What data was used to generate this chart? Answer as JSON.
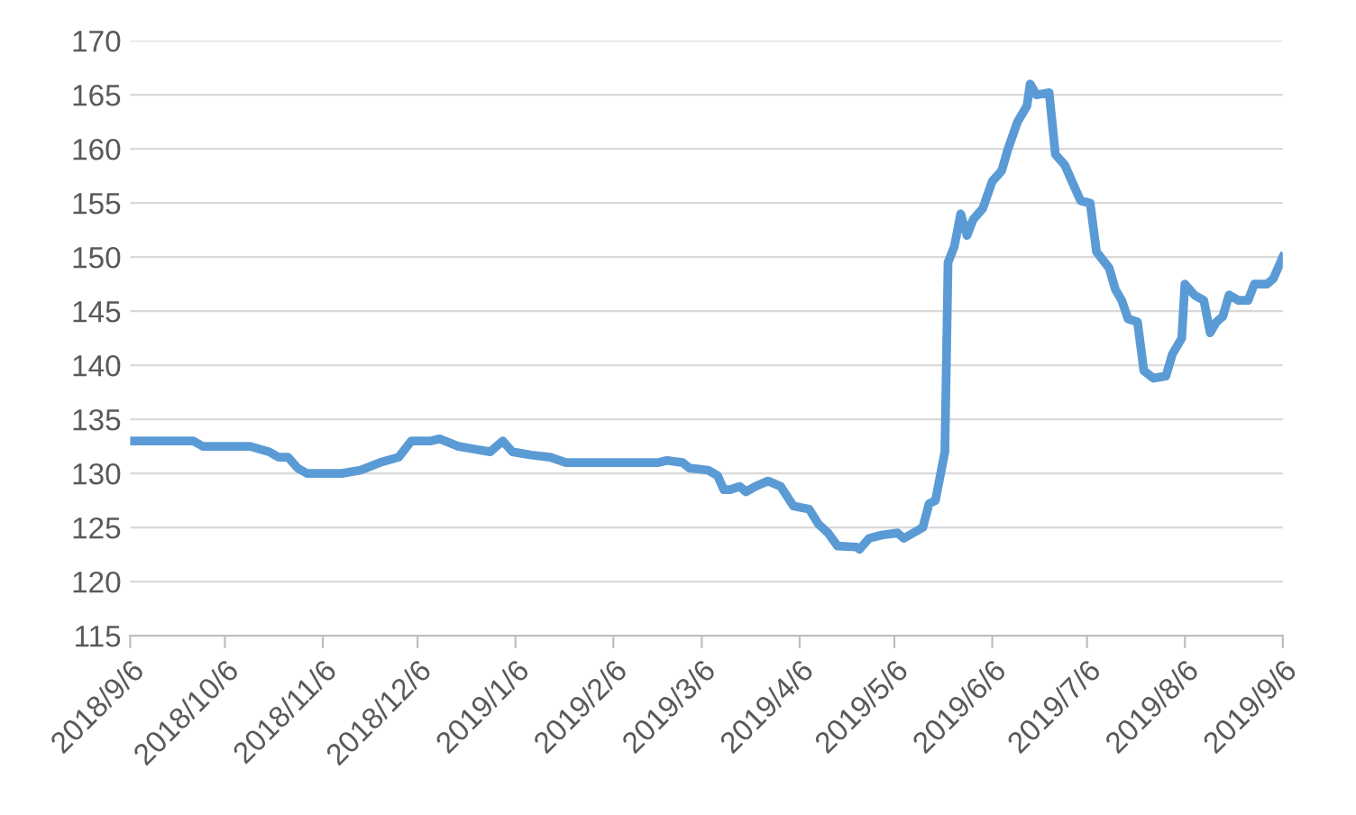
{
  "chart_data": {
    "type": "line",
    "grid": "y",
    "marker": "none",
    "line_style": "solid",
    "xlim": [
      "2018-09-06",
      "2019-09-06"
    ],
    "xticks": [
      {
        "value": "2018-09-06",
        "label": "2018/9/6"
      },
      {
        "value": "2018-10-06",
        "label": "2018/10/6"
      },
      {
        "value": "2018-11-06",
        "label": "2018/11/6"
      },
      {
        "value": "2018-12-06",
        "label": "2018/12/6"
      },
      {
        "value": "2019-01-06",
        "label": "2019/1/6"
      },
      {
        "value": "2019-02-06",
        "label": "2019/2/6"
      },
      {
        "value": "2019-03-06",
        "label": "2019/3/6"
      },
      {
        "value": "2019-04-06",
        "label": "2019/4/6"
      },
      {
        "value": "2019-05-06",
        "label": "2019/5/6"
      },
      {
        "value": "2019-06-06",
        "label": "2019/6/6"
      },
      {
        "value": "2019-07-06",
        "label": "2019/7/6"
      },
      {
        "value": "2019-08-06",
        "label": "2019/8/6"
      },
      {
        "value": "2019-09-06",
        "label": "2019/9/6"
      }
    ],
    "ylim": [
      115,
      170
    ],
    "yticks": [
      115,
      120,
      125,
      130,
      135,
      140,
      145,
      150,
      155,
      160,
      165,
      170
    ],
    "x": [
      "2018-09-06",
      "2018-09-26",
      "2018-09-29",
      "2018-10-14",
      "2018-10-20",
      "2018-10-23",
      "2018-10-26",
      "2018-10-29",
      "2018-11-01",
      "2018-11-05",
      "2018-11-12",
      "2018-11-18",
      "2018-11-24",
      "2018-11-30",
      "2018-12-04",
      "2018-12-10",
      "2018-12-13",
      "2018-12-19",
      "2018-12-25",
      "2018-12-29",
      "2019-01-02",
      "2019-01-05",
      "2019-01-11",
      "2019-01-17",
      "2019-01-22",
      "2019-01-31",
      "2019-02-20",
      "2019-02-23",
      "2019-02-28",
      "2019-03-02",
      "2019-03-08",
      "2019-03-11",
      "2019-03-13",
      "2019-03-15",
      "2019-03-18",
      "2019-03-20",
      "2019-03-23",
      "2019-03-27",
      "2019-03-31",
      "2019-04-04",
      "2019-04-09",
      "2019-04-12",
      "2019-04-15",
      "2019-04-18",
      "2019-04-24",
      "2019-04-25",
      "2019-04-28",
      "2019-05-02",
      "2019-05-07",
      "2019-05-09",
      "2019-05-12",
      "2019-05-15",
      "2019-05-17",
      "2019-05-19",
      "2019-05-22",
      "2019-05-23",
      "2019-05-25",
      "2019-05-27",
      "2019-05-29",
      "2019-05-31",
      "2019-06-03",
      "2019-06-06",
      "2019-06-09",
      "2019-06-11",
      "2019-06-14",
      "2019-06-17",
      "2019-06-18",
      "2019-06-20",
      "2019-06-24",
      "2019-06-26",
      "2019-06-29",
      "2019-07-02",
      "2019-07-04",
      "2019-07-07",
      "2019-07-09",
      "2019-07-13",
      "2019-07-15",
      "2019-07-17",
      "2019-07-19",
      "2019-07-22",
      "2019-07-24",
      "2019-07-27",
      "2019-07-31",
      "2019-08-02",
      "2019-08-05",
      "2019-08-06",
      "2019-08-09",
      "2019-08-12",
      "2019-08-14",
      "2019-08-16",
      "2019-08-18",
      "2019-08-20",
      "2019-08-23",
      "2019-08-26",
      "2019-08-28",
      "2019-09-01",
      "2019-09-03",
      "2019-09-06"
    ],
    "series": [
      {
        "color": "#5b9bd5",
        "values": [
          133,
          133,
          132.5,
          132.5,
          132,
          131.5,
          131.5,
          130.5,
          130,
          130,
          130,
          130.3,
          131,
          131.5,
          133,
          133,
          133.2,
          132.5,
          132.2,
          132,
          133,
          132,
          131.7,
          131.5,
          131,
          131,
          131,
          131.2,
          131,
          130.5,
          130.3,
          129.8,
          128.5,
          128.5,
          128.8,
          128.3,
          128.8,
          129.3,
          128.8,
          127,
          126.7,
          125.3,
          124.5,
          123.3,
          123.2,
          123,
          124,
          124.3,
          124.5,
          124,
          124.5,
          125,
          127.2,
          127.5,
          132,
          149.5,
          151,
          154,
          152,
          153.5,
          154.5,
          157,
          158,
          160,
          162.5,
          164,
          166,
          165,
          165.2,
          159.5,
          158.5,
          156.5,
          155.2,
          155,
          150.5,
          149,
          147,
          146,
          144.3,
          144,
          139.5,
          138.8,
          139,
          141,
          142.5,
          147.5,
          146.5,
          146,
          143,
          144,
          144.5,
          146.5,
          146,
          146,
          147.5,
          147.5,
          148,
          150
        ]
      }
    ]
  }
}
